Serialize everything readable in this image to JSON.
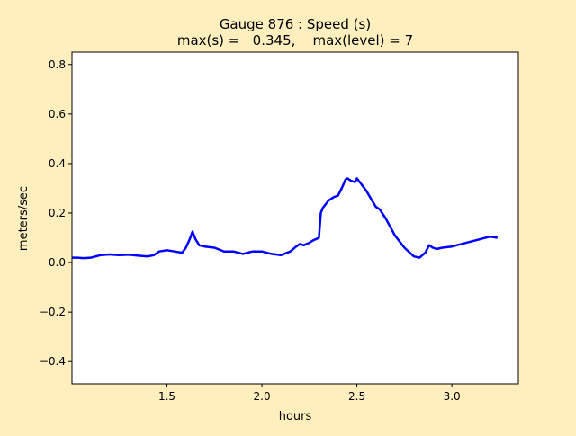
{
  "chart_data": {
    "type": "line",
    "title_line1": "Gauge 876 : Speed (s)",
    "title_line2": "max(s) =   0.345,    max(level) = 7",
    "xlabel": "hours",
    "ylabel": "meters/sec",
    "xlim": [
      1.0,
      3.35
    ],
    "ylim": [
      -0.49,
      0.85
    ],
    "x_ticks": [
      1.5,
      2.0,
      2.5,
      3.0
    ],
    "x_tick_labels": [
      "1.5",
      "2.0",
      "2.5",
      "3.0"
    ],
    "y_ticks": [
      -0.4,
      -0.2,
      0.0,
      0.2,
      0.4,
      0.6,
      0.8
    ],
    "y_tick_labels": [
      "−0.4",
      "−0.2",
      "0.0",
      "0.2",
      "0.4",
      "0.6",
      "0.8"
    ],
    "grid": false,
    "series": [
      {
        "color": "#0000ff",
        "x": [
          1.0,
          1.03,
          1.06,
          1.1,
          1.15,
          1.2,
          1.25,
          1.3,
          1.35,
          1.4,
          1.43,
          1.46,
          1.5,
          1.54,
          1.58,
          1.6,
          1.62,
          1.635,
          1.65,
          1.67,
          1.7,
          1.75,
          1.8,
          1.85,
          1.9,
          1.95,
          2.0,
          2.05,
          2.1,
          2.15,
          2.18,
          2.2,
          2.22,
          2.25,
          2.27,
          2.3,
          2.31,
          2.32,
          2.35,
          2.38,
          2.4,
          2.42,
          2.44,
          2.45,
          2.47,
          2.49,
          2.5,
          2.52,
          2.55,
          2.58,
          2.6,
          2.62,
          2.65,
          2.7,
          2.75,
          2.8,
          2.83,
          2.86,
          2.88,
          2.9,
          2.92,
          2.95,
          3.0,
          3.05,
          3.1,
          3.15,
          3.2,
          3.24
        ],
        "y": [
          0.02,
          0.02,
          0.018,
          0.02,
          0.03,
          0.033,
          0.03,
          0.032,
          0.028,
          0.025,
          0.03,
          0.045,
          0.05,
          0.045,
          0.04,
          0.06,
          0.095,
          0.125,
          0.095,
          0.07,
          0.065,
          0.06,
          0.045,
          0.045,
          0.035,
          0.045,
          0.045,
          0.035,
          0.03,
          0.045,
          0.065,
          0.075,
          0.07,
          0.08,
          0.09,
          0.1,
          0.2,
          0.22,
          0.25,
          0.265,
          0.27,
          0.3,
          0.335,
          0.34,
          0.33,
          0.325,
          0.34,
          0.32,
          0.29,
          0.25,
          0.225,
          0.215,
          0.18,
          0.11,
          0.06,
          0.025,
          0.02,
          0.04,
          0.07,
          0.06,
          0.055,
          0.06,
          0.065,
          0.075,
          0.085,
          0.095,
          0.105,
          0.1
        ]
      }
    ]
  }
}
